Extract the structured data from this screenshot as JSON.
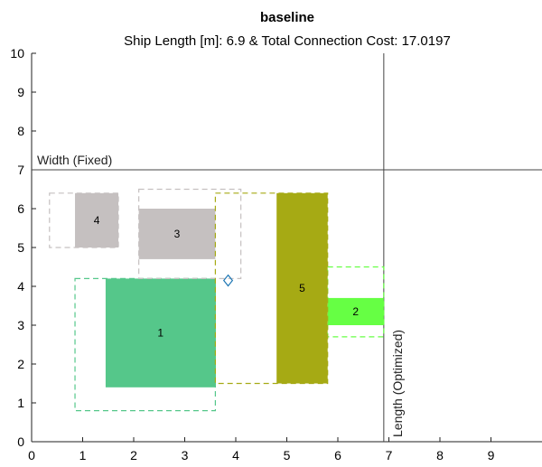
{
  "chart_data": {
    "type": "layout",
    "title": "baseline",
    "subtitle": "Ship Length [m]: 6.9  &  Total Connection Cost: 17.0197",
    "xlim": [
      0,
      10
    ],
    "ylim": [
      0,
      10
    ],
    "xticks": [
      "0",
      "1",
      "2",
      "3",
      "4",
      "5",
      "6",
      "7",
      "8",
      "9"
    ],
    "yticks": [
      "0",
      "1",
      "2",
      "3",
      "4",
      "5",
      "6",
      "7",
      "8",
      "9",
      "10"
    ],
    "width_line": {
      "y": 7,
      "label": "Width (Fixed)"
    },
    "length_line": {
      "x": 6.9,
      "label": "Length (Optimized)"
    },
    "marker": {
      "x": 3.85,
      "y": 4.15,
      "shape": "diamond",
      "color": "#1f77b4"
    },
    "components": [
      {
        "label": "1",
        "x": [
          1.45,
          3.6
        ],
        "y": [
          1.4,
          4.2
        ],
        "color": "#55c78a",
        "clearance": {
          "x": [
            0.85,
            3.6
          ],
          "y": [
            0.8,
            4.2
          ]
        }
      },
      {
        "label": "2",
        "x": [
          5.8,
          6.9
        ],
        "y": [
          3.0,
          3.7
        ],
        "color": "#66ff44",
        "clearance": {
          "x": [
            5.8,
            6.9
          ],
          "y": [
            2.7,
            4.5
          ]
        }
      },
      {
        "label": "3",
        "x": [
          2.1,
          3.6
        ],
        "y": [
          4.7,
          6.0
        ],
        "color": "#c5c0c0",
        "clearance": {
          "x": [
            2.1,
            4.1
          ],
          "y": [
            4.2,
            6.5
          ]
        }
      },
      {
        "label": "4",
        "x": [
          0.85,
          1.7
        ],
        "y": [
          5.0,
          6.4
        ],
        "color": "#c5c0c0",
        "clearance": {
          "x": [
            0.35,
            1.7
          ],
          "y": [
            5.0,
            6.4
          ]
        }
      },
      {
        "label": "5",
        "x": [
          4.8,
          5.8
        ],
        "y": [
          1.5,
          6.4
        ],
        "color": "#a6aa14",
        "clearance": {
          "x": [
            3.6,
            5.8
          ],
          "y": [
            1.5,
            6.4
          ]
        }
      }
    ]
  }
}
